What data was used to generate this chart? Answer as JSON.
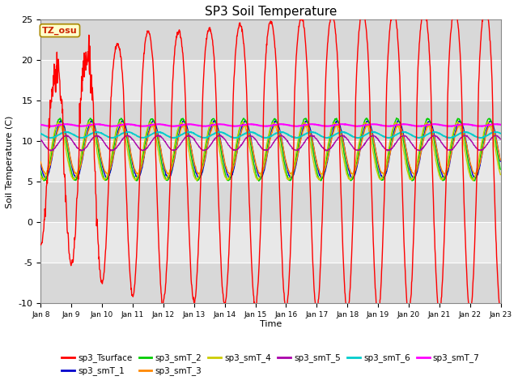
{
  "title": "SP3 Soil Temperature",
  "ylabel": "Soil Temperature (C)",
  "xlabel": "Time",
  "timezone_label": "TZ_osu",
  "ylim": [
    -10,
    25
  ],
  "yticks": [
    -10,
    -5,
    0,
    5,
    10,
    15,
    20,
    25
  ],
  "xtick_labels": [
    "Jan 8",
    "Jan 9",
    "Jan 10",
    "Jan 11",
    "Jan 12",
    "Jan 13",
    "Jan 14",
    "Jan 15",
    "Jan 16",
    "Jan 17",
    "Jan 18",
    "Jan 19",
    "Jan 20",
    "Jan 21",
    "Jan 22",
    "Jan 23"
  ],
  "series_colors": {
    "sp3_Tsurface": "#ff0000",
    "sp3_smT_1": "#0000cc",
    "sp3_smT_2": "#00cc00",
    "sp3_smT_3": "#ff8800",
    "sp3_smT_4": "#cccc00",
    "sp3_smT_5": "#aa00aa",
    "sp3_smT_6": "#00cccc",
    "sp3_smT_7": "#ff00ff"
  },
  "plot_bg_color": "#e0e0e0",
  "band_colors": [
    "#d8d8d8",
    "#e8e8e8"
  ]
}
